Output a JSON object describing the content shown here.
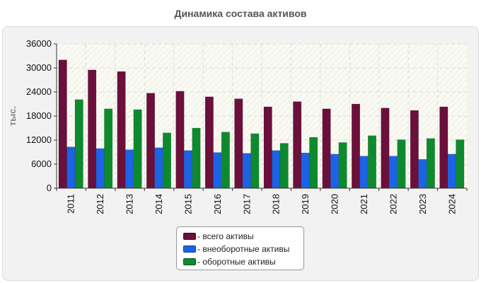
{
  "chart_data": {
    "type": "bar",
    "title": "Динамика состава активов",
    "xlabel": "",
    "ylabel": "тыс.",
    "ylim": [
      0,
      36000
    ],
    "yticks": [
      0,
      6000,
      12000,
      18000,
      24000,
      30000,
      36000
    ],
    "categories": [
      "2011",
      "2012",
      "2013",
      "2014",
      "2015",
      "2016",
      "2017",
      "2018",
      "2019",
      "2020",
      "2021",
      "2022",
      "2023",
      "2024"
    ],
    "series": [
      {
        "name": "- всего активы",
        "color": "#6b0f3b",
        "values": [
          32000,
          29500,
          29100,
          23700,
          24200,
          22800,
          22300,
          20300,
          21600,
          19800,
          21000,
          20000,
          19400,
          20300
        ]
      },
      {
        "name": "- внеоборотные активы",
        "color": "#1c63e6",
        "values": [
          10300,
          9900,
          9600,
          10100,
          9400,
          8900,
          8700,
          9400,
          8800,
          8500,
          8000,
          8000,
          7200,
          8500
        ]
      },
      {
        "name": "- оборотные активы",
        "color": "#0e8a2e",
        "values": [
          22100,
          19800,
          19600,
          13800,
          15000,
          14000,
          13600,
          11200,
          12700,
          11400,
          13100,
          12100,
          12400,
          12100
        ]
      }
    ],
    "legend_position": "bottom-center",
    "grid": true
  }
}
